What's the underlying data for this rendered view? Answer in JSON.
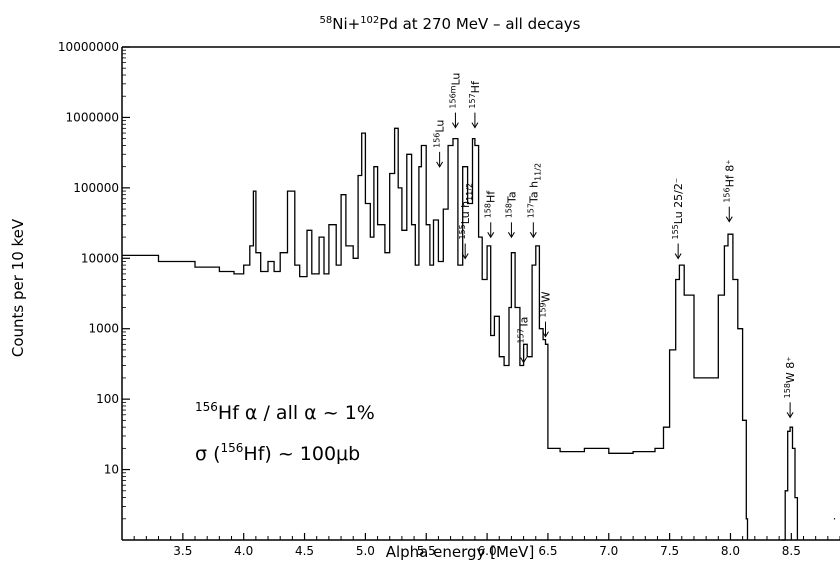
{
  "chart_data": {
    "type": "line",
    "title_parts": {
      "a1": "58",
      "a2": "Ni+",
      "a3": "102",
      "a4": "Pd at 270 MeV – all decays"
    },
    "xlabel": "Alpha energy [MeV]",
    "ylabel": "Counts per 10 keV",
    "x_scale": "linear",
    "y_scale": "log",
    "xlim": [
      3.0,
      8.9
    ],
    "ylim": [
      1,
      10000000
    ],
    "x_ticks": [
      3.5,
      4.0,
      4.5,
      5.0,
      5.5,
      6.0,
      6.5,
      7.0,
      7.5,
      8.0,
      8.5
    ],
    "x_tick_labels": [
      "3.5",
      "4.0",
      "4.5",
      "5.0",
      "5.5",
      "6.0",
      "6.5",
      "7.0",
      "7.5",
      "8.0",
      "8.5"
    ],
    "y_ticks": [
      10,
      100,
      1000,
      10000,
      100000,
      1000000,
      10000000
    ],
    "y_tick_labels": [
      "10",
      "100",
      "1000",
      "10000",
      "100000",
      "1000000",
      "10000000"
    ],
    "grid": false,
    "series": [
      {
        "x": [
          3.0,
          3.3,
          3.6,
          3.8,
          3.92,
          4.0,
          4.05,
          4.08,
          4.1,
          4.14,
          4.2,
          4.25,
          4.3,
          4.36,
          4.42,
          4.46,
          4.52,
          4.56,
          4.62,
          4.66,
          4.7,
          4.76,
          4.8,
          4.84,
          4.9,
          4.94,
          4.97,
          5.0,
          5.04,
          5.07,
          5.1,
          5.16,
          5.2,
          5.24,
          5.27,
          5.3,
          5.34,
          5.38,
          5.41,
          5.44,
          5.46,
          5.5,
          5.53,
          5.56,
          5.6,
          5.64,
          5.68,
          5.72,
          5.76,
          5.8,
          5.84,
          5.88,
          5.9,
          5.93,
          5.96,
          6.0,
          6.03,
          6.06,
          6.1,
          6.14,
          6.18,
          6.2,
          6.23,
          6.27,
          6.3,
          6.33,
          6.37,
          6.4,
          6.43,
          6.46,
          6.48,
          6.5,
          6.6,
          6.8,
          7.0,
          7.2,
          7.38,
          7.45,
          7.5,
          7.55,
          7.58,
          7.62,
          7.7,
          7.8,
          7.9,
          7.95,
          7.98,
          8.02,
          8.06,
          8.1,
          8.13,
          8.14
        ],
        "values": [
          11000,
          9000,
          7500,
          6500,
          6000,
          8000,
          15000,
          90000,
          12000,
          6500,
          9000,
          6500,
          12000,
          90000,
          8000,
          5500,
          25000,
          6000,
          20000,
          6000,
          30000,
          8000,
          80000,
          15000,
          10000,
          150000,
          600000,
          60000,
          20000,
          200000,
          30000,
          12000,
          160000,
          700000,
          100000,
          25000,
          300000,
          30000,
          8000,
          200000,
          400000,
          30000,
          8000,
          35000,
          9000,
          50000,
          400000,
          500000,
          8000,
          200000,
          60000,
          500000,
          400000,
          20000,
          5000,
          15000,
          800,
          1500,
          400,
          300,
          2000,
          12000,
          2000,
          300,
          600,
          400,
          8000,
          15000,
          1000,
          700,
          600,
          20,
          18,
          20,
          17,
          18,
          20,
          40,
          500,
          5000,
          8000,
          3000,
          200,
          200,
          3000,
          15000,
          22000,
          5000,
          1000,
          50,
          2,
          1
        ]
      },
      {
        "x": [
          8.42,
          8.45,
          8.47,
          8.49,
          8.51,
          8.53,
          8.55
        ],
        "values": [
          1,
          5,
          35,
          40,
          20,
          4,
          1
        ]
      },
      {
        "x": [
          8.85,
          8.86
        ],
        "values": [
          2,
          2
        ]
      }
    ],
    "annotations": [
      {
        "text_parts": {
          "sup": "156",
          "base": "Lu"
        },
        "x": 5.61,
        "y": 180000
      },
      {
        "text_parts": {
          "sup": "156m",
          "base": "Lu"
        },
        "x": 5.74,
        "y": 650000
      },
      {
        "text_parts": {
          "sup": "157",
          "base": "Hf"
        },
        "x": 5.9,
        "y": 650000
      },
      {
        "text_parts": {
          "sup": "158",
          "base": "Hf"
        },
        "x": 6.03,
        "y": 18000
      },
      {
        "text_parts": {
          "sup": "158",
          "base": "Ta"
        },
        "x": 6.2,
        "y": 18000
      },
      {
        "text_parts": {
          "sup": "157",
          "base": "Ta h",
          "sub": "11/2"
        },
        "x": 6.38,
        "y": 18000
      },
      {
        "text_parts": {
          "sup": "155",
          "base": "Lu h",
          "sub": "11/2"
        },
        "x": 5.82,
        "y": 9000
      },
      {
        "text_parts": {
          "sup": "157",
          "base": "Ta"
        },
        "x": 6.3,
        "y": 300
      },
      {
        "text_parts": {
          "sup": "159",
          "base": "W"
        },
        "x": 6.48,
        "y": 700
      },
      {
        "text_parts": {
          "sup": "155",
          "base": "Lu 25/2",
          "post": "⁻"
        },
        "x": 7.57,
        "y": 9000
      },
      {
        "text_parts": {
          "sup": "156",
          "base": "Hf 8",
          "post": "⁺"
        },
        "x": 7.99,
        "y": 30000
      },
      {
        "text_parts": {
          "sup": "158",
          "base": "W 8",
          "post": "⁺"
        },
        "x": 8.49,
        "y": 50
      }
    ],
    "inset_text": [
      {
        "sup": "156",
        "base": "Hf α / all α ~ 1%"
      },
      {
        "pre": "σ (",
        "sup": "156",
        "base": "Hf) ~ 100μb"
      }
    ]
  }
}
